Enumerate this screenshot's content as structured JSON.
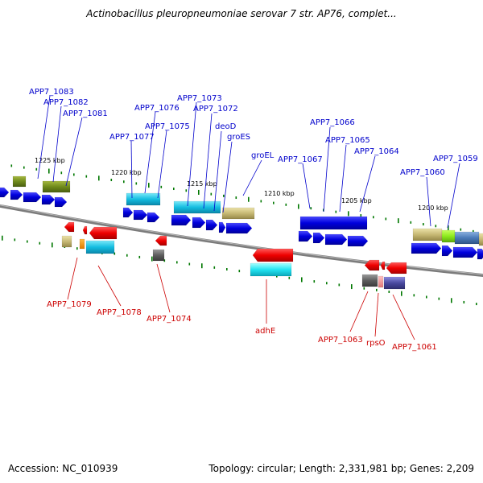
{
  "title": "Actinobacillus pleuropneumoniae serovar 7 str. AP76, complet...",
  "accession": "Accession: NC_010939",
  "topology": "Topology: circular; Length: 2,331,981 bp; Genes: 2,209",
  "colors": {
    "forward": "#0000ee",
    "reverse": "#ee0000",
    "tick": "#007700",
    "backbone": "#808080"
  },
  "ticks": [
    {
      "label": "1225 kbp"
    },
    {
      "label": "1220 kbp"
    },
    {
      "label": "1215 kbp"
    },
    {
      "label": "1210 kbp"
    },
    {
      "label": "1205 kbp"
    },
    {
      "label": "1200 kbp"
    }
  ],
  "forward_genes": [
    {
      "label": "APP7_1083"
    },
    {
      "label": "APP7_1082"
    },
    {
      "label": "APP7_1081"
    },
    {
      "label": "APP7_1076"
    },
    {
      "label": "APP7_1077"
    },
    {
      "label": "APP7_1075"
    },
    {
      "label": "APP7_1073"
    },
    {
      "label": "APP7_1072"
    },
    {
      "label": "deoD"
    },
    {
      "label": "groES"
    },
    {
      "label": "groEL"
    },
    {
      "label": "APP7_1067"
    },
    {
      "label": "APP7_1066"
    },
    {
      "label": "APP7_1065"
    },
    {
      "label": "APP7_1064"
    },
    {
      "label": "APP7_1060"
    },
    {
      "label": "APP7_1059"
    }
  ],
  "reverse_genes": [
    {
      "label": "APP7_1079"
    },
    {
      "label": "APP7_1078"
    },
    {
      "label": "APP7_1074"
    },
    {
      "label": "adhE"
    },
    {
      "label": "APP7_1063"
    },
    {
      "label": "rpsO"
    },
    {
      "label": "APP7_1061"
    }
  ]
}
